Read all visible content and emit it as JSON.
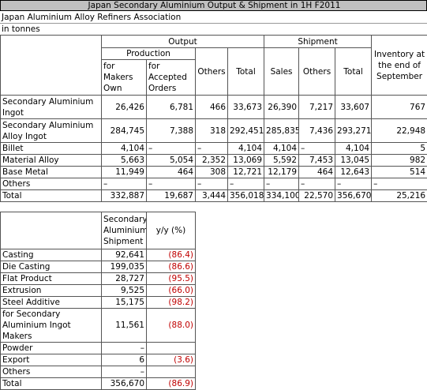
{
  "header": {
    "title": "Japan Secondary Aluminium Output & Shipment in 1H F2011",
    "subtitle": "Japan Aluminium Alloy Refiners Association",
    "unit": "in tonnes"
  },
  "output_table": {
    "output": "Output",
    "shipment": "Shipment",
    "inventory": "Inventory at the end of September",
    "production": "Production",
    "columns": [
      "for Makers Own",
      "for Accepted Orders",
      "Others",
      "Total",
      "Sales",
      "Others",
      "Total"
    ],
    "rows": [
      [
        "Secondary Aluminium Ingot",
        "26,426",
        "6,781",
        "466",
        "33,673",
        "26,390",
        "7,217",
        "33,607",
        "767"
      ],
      [
        "Secondary Aluminium Alloy Ingot",
        "284,745",
        "7,388",
        "318",
        "292,451",
        "285,835",
        "7,436",
        "293,271",
        "22,948"
      ],
      [
        "Billet",
        "4,104",
        "–",
        "–",
        "4,104",
        "4,104",
        "–",
        "4,104",
        "5"
      ],
      [
        "Material Alloy",
        "5,663",
        "5,054",
        "2,352",
        "13,069",
        "5,592",
        "7,453",
        "13,045",
        "982"
      ],
      [
        "Base Metal",
        "11,949",
        "464",
        "308",
        "12,721",
        "12,179",
        "464",
        "12,643",
        "514"
      ],
      [
        "Others",
        "–",
        "–",
        "–",
        "–",
        "–",
        "–",
        "–",
        "–"
      ],
      [
        "Total",
        "332,887",
        "19,687",
        "3,444",
        "356,018",
        "334,100",
        "22,570",
        "356,670",
        "25,216"
      ]
    ]
  },
  "shipment_table": {
    "columns": [
      "Secondary Aluminium Shipment",
      "y/y (%)"
    ],
    "rows": [
      [
        "Casting",
        "92,641",
        "(86.4)"
      ],
      [
        "Die Casting",
        "199,035",
        "(86.6)"
      ],
      [
        "Flat Product",
        "28,727",
        "(95.5)"
      ],
      [
        "Extrusion",
        "9,525",
        "(66.0)"
      ],
      [
        "Steel Additive",
        "15,175",
        "(98.2)"
      ],
      [
        "for Secondary Aluminium Ingot Makers",
        "11,561",
        "(88.0)"
      ],
      [
        "Powder",
        "–",
        null
      ],
      [
        "Export",
        "6",
        "(3.6)"
      ],
      [
        "Others",
        "–",
        null
      ],
      [
        "Total",
        "356,670",
        "(86.9)"
      ]
    ]
  }
}
